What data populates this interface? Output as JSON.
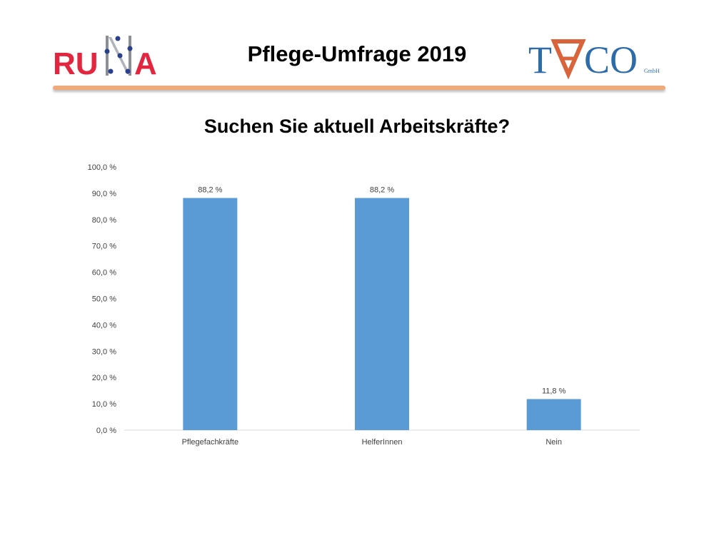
{
  "header": {
    "title": "Pflege-Umfrage 2019",
    "logo_left": {
      "text": "RUNA",
      "icon": "runa-logo"
    },
    "logo_right": {
      "text": "TACO",
      "suffix": "GmbH",
      "icon": "taco-logo"
    },
    "rule_color": "#f0a978"
  },
  "chart_data": {
    "type": "bar",
    "title": "Suchen Sie aktuell Arbeitskräfte?",
    "categories": [
      "Pflegefachkräfte",
      "HelferInnen",
      "Nein"
    ],
    "values": [
      88.2,
      88.2,
      11.8
    ],
    "value_labels": [
      "88,2 %",
      "88,2 %",
      "11,8 %"
    ],
    "ylim": [
      0,
      100
    ],
    "yticks": [
      0,
      10,
      20,
      30,
      40,
      50,
      60,
      70,
      80,
      90,
      100
    ],
    "ytick_labels": [
      "0,0 %",
      "10,0 %",
      "20,0 %",
      "30,0 %",
      "40,0 %",
      "50,0 %",
      "60,0 %",
      "70,0 %",
      "80,0 %",
      "90,0 %",
      "100,0 %"
    ],
    "xlabel": "",
    "ylabel": "",
    "grid": false,
    "bar_color": "#5b9bd5"
  }
}
